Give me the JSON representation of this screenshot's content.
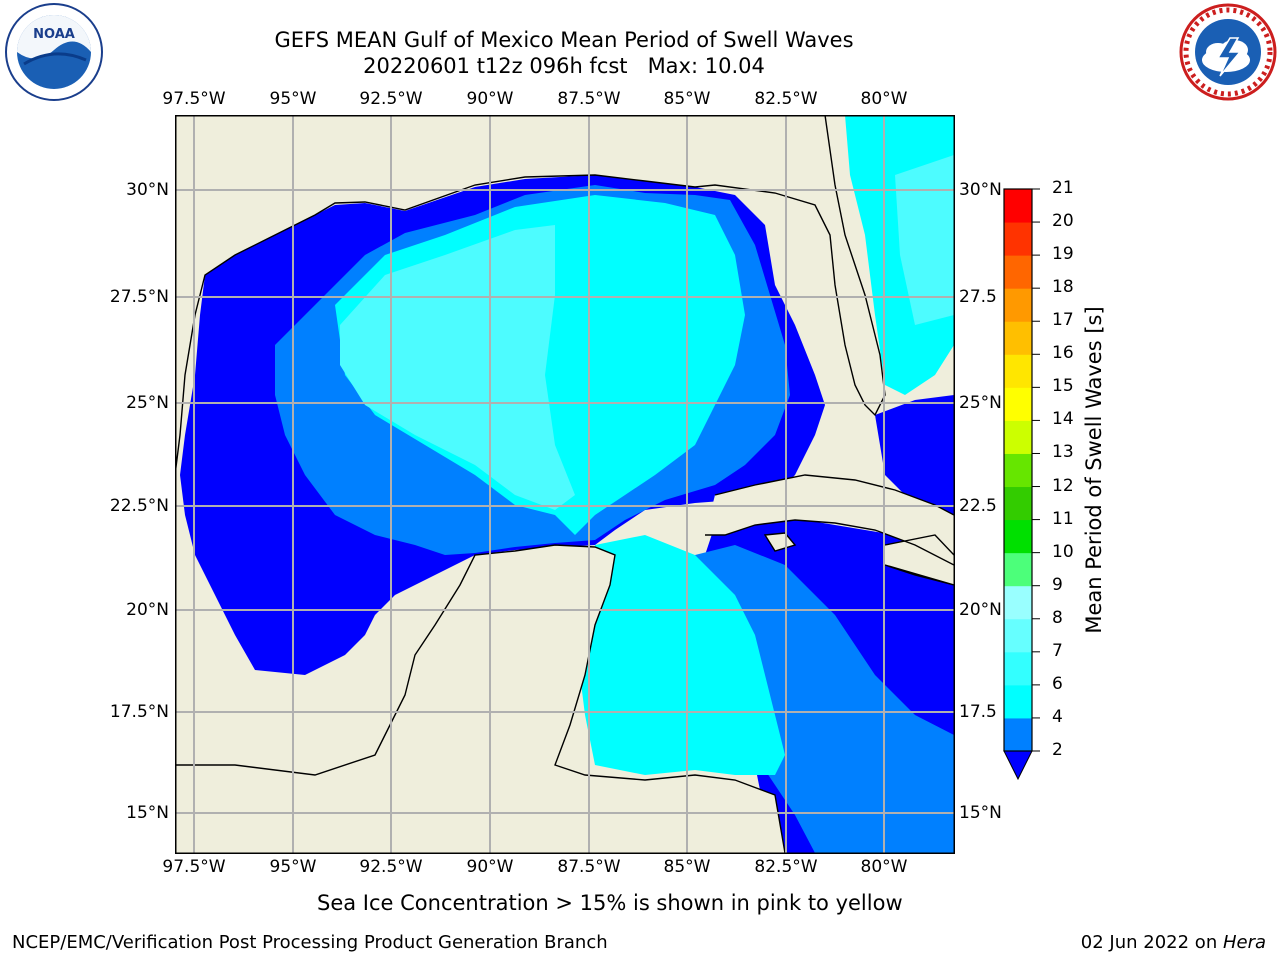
{
  "header": {
    "title_line1": "GEFS MEAN Gulf of Mexico Mean Period of Swell Waves",
    "title_line2": "20220601 t12z 096h fcst   Max: 10.04"
  },
  "logos": {
    "left": {
      "name": "noaa-logo",
      "text": "NOAA"
    },
    "right": {
      "name": "nws-logo"
    }
  },
  "map": {
    "lon_labels": [
      "97.5°W",
      "95°W",
      "92.5°W",
      "90°W",
      "87.5°W",
      "85°W",
      "82.5°W",
      "80°W"
    ],
    "lat_labels": [
      "30°N",
      "27.5°N",
      "25°N",
      "22.5°N",
      "20°N",
      "17.5°N",
      "15°N"
    ],
    "right_lat_labels": [
      "30°N",
      "27.5",
      "25°N",
      "22.5",
      "20°N",
      "17.5",
      "15°N"
    ],
    "land_color": "#efeedc",
    "grid_color": "#b0b0b0"
  },
  "colorbar": {
    "label": "Mean Period of Swell Waves [s]",
    "ticks": [
      "2",
      "4",
      "6",
      "7",
      "8",
      "9",
      "10",
      "11",
      "12",
      "13",
      "14",
      "15",
      "16",
      "17",
      "18",
      "19",
      "20",
      "21"
    ],
    "colors": [
      "#0000ff",
      "#0080ff",
      "#00ffff",
      "#33ffff",
      "#66ffff",
      "#99ffff",
      "#4cff7a",
      "#00e000",
      "#33cc00",
      "#66e600",
      "#ccff00",
      "#ffff00",
      "#ffe600",
      "#ffbf00",
      "#ff9900",
      "#ff6600",
      "#ff3300",
      "#ff0000"
    ]
  },
  "note": "Sea Ice Concentration > 15% is shown in pink to yellow",
  "footer": {
    "left": "NCEP/EMC/Verification Post Processing Product Generation Branch",
    "date": "02 Jun 2022 on ",
    "machine": "Hera"
  }
}
